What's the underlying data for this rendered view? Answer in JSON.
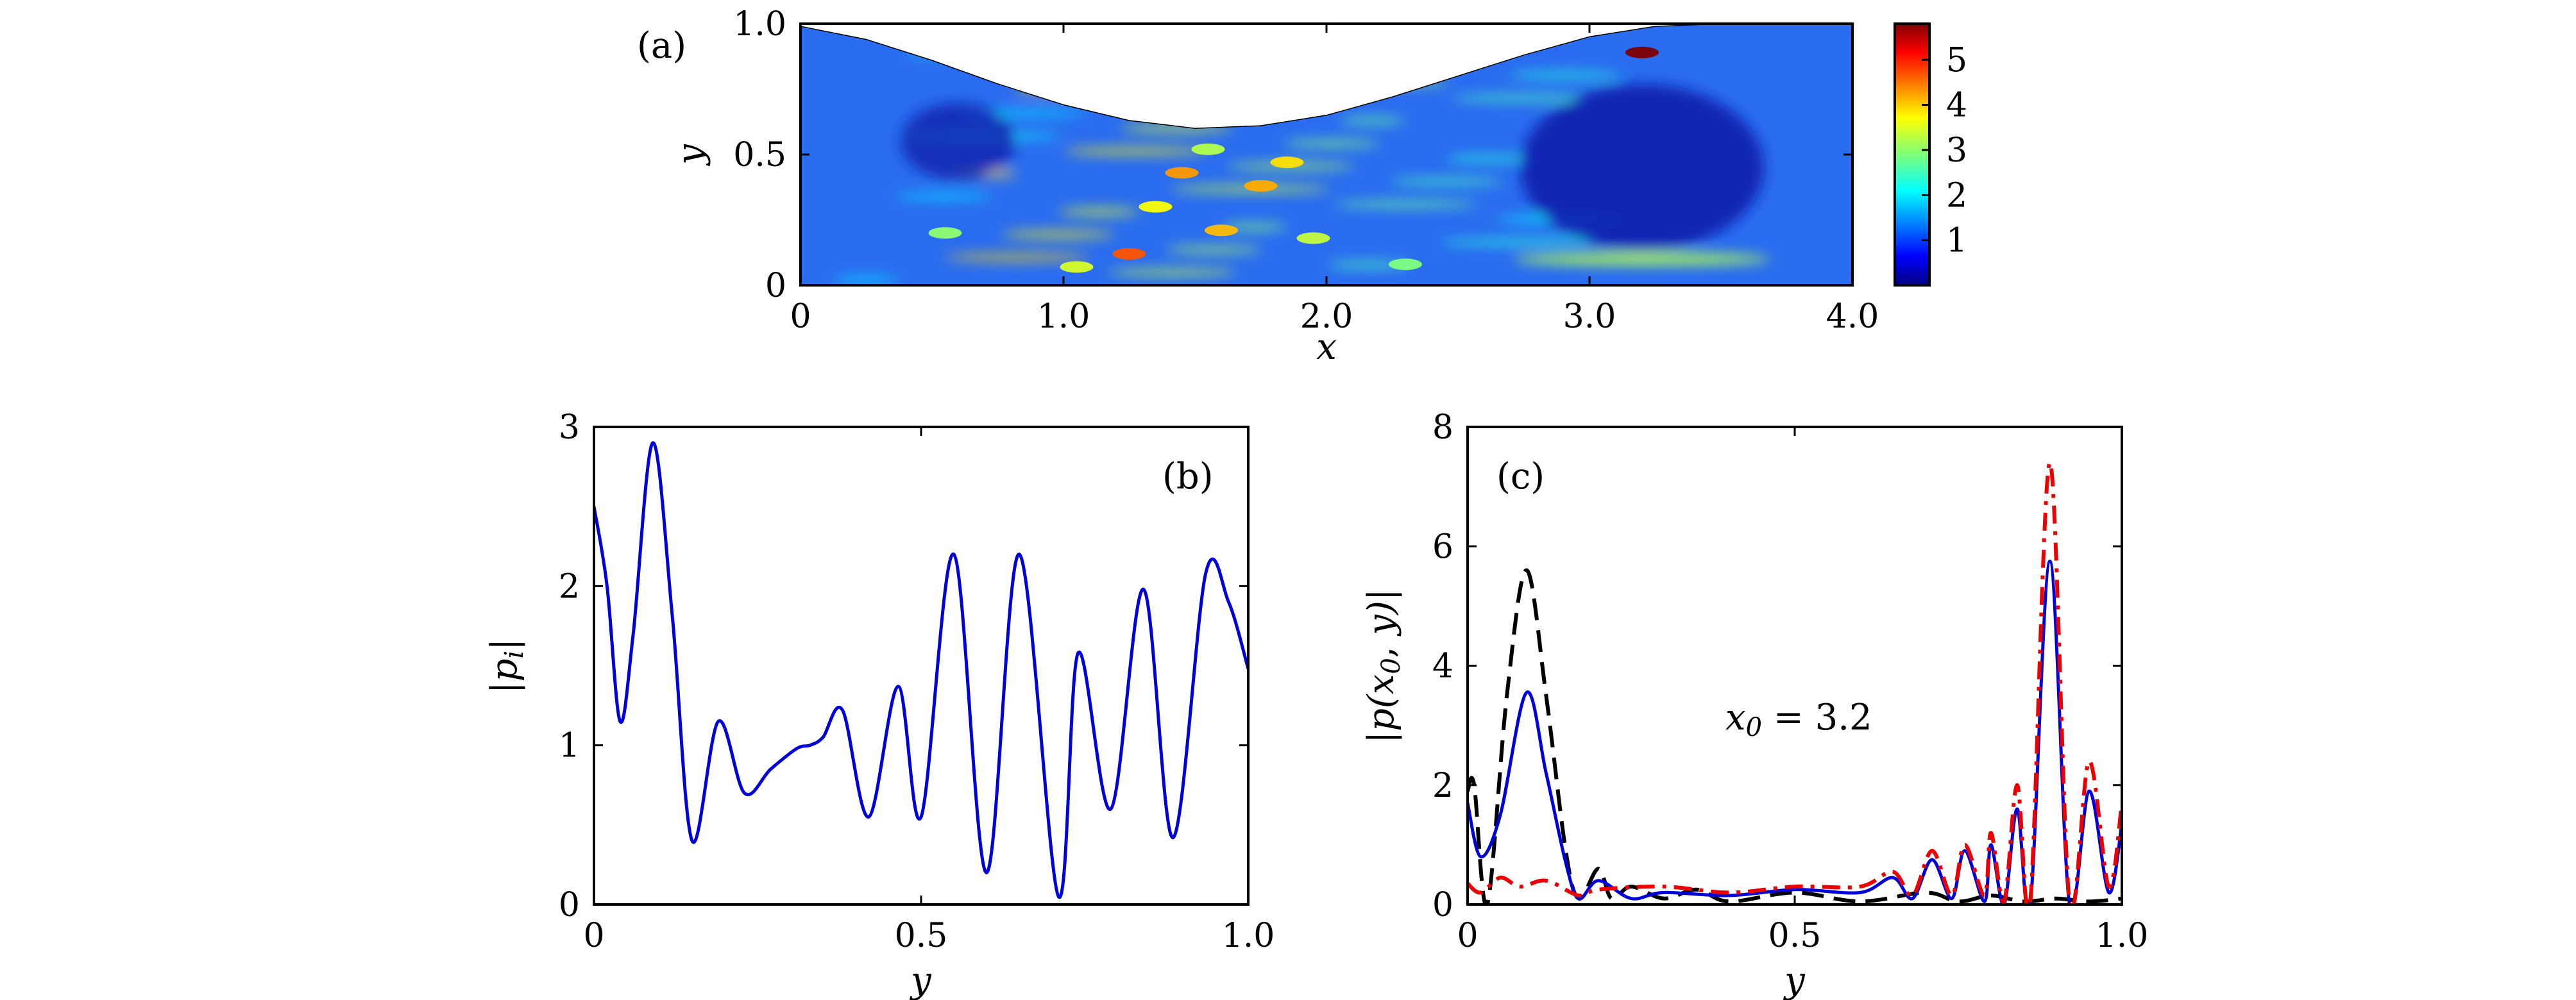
{
  "chart_data": [
    {
      "panel": "(a)",
      "type": "heatmap",
      "xlabel": "x",
      "ylabel": "y",
      "xlim": [
        0,
        4.0
      ],
      "ylim": [
        0,
        1.0
      ],
      "xtick_labels": [
        "0",
        "1.0",
        "2.0",
        "3.0",
        "4.0"
      ],
      "ytick_labels": [
        "0",
        "0.5",
        "1.0"
      ],
      "colorbar": {
        "range": [
          0,
          5.8
        ],
        "tick_labels": [
          "1",
          "2",
          "3",
          "4",
          "5"
        ],
        "colormap": "jet"
      },
      "upper_boundary": {
        "x": [
          0,
          0.25,
          0.5,
          0.75,
          1.0,
          1.25,
          1.5,
          1.75,
          2.0,
          2.25,
          2.5,
          2.75,
          3.0,
          3.25,
          3.5,
          3.75,
          4.0
        ],
        "y": [
          0.99,
          0.94,
          0.86,
          0.77,
          0.69,
          0.63,
          0.6,
          0.61,
          0.65,
          0.72,
          0.8,
          0.88,
          0.95,
          0.99,
          1.0,
          1.0,
          1.0
        ]
      },
      "hotspots": [
        {
          "x": 3.2,
          "y": 0.89,
          "value": 5.8
        },
        {
          "x": 1.25,
          "y": 0.12,
          "value": 4.6
        },
        {
          "x": 1.45,
          "y": 0.43,
          "value": 4.2
        },
        {
          "x": 1.6,
          "y": 0.21,
          "value": 4.0
        },
        {
          "x": 1.75,
          "y": 0.38,
          "value": 4.1
        },
        {
          "x": 1.85,
          "y": 0.47,
          "value": 3.8
        },
        {
          "x": 1.35,
          "y": 0.3,
          "value": 3.6
        },
        {
          "x": 1.05,
          "y": 0.07,
          "value": 3.4
        },
        {
          "x": 1.95,
          "y": 0.18,
          "value": 3.3
        },
        {
          "x": 1.55,
          "y": 0.52,
          "value": 3.2
        },
        {
          "x": 0.55,
          "y": 0.2,
          "value": 3.0
        },
        {
          "x": 2.3,
          "y": 0.08,
          "value": 2.9
        }
      ]
    },
    {
      "panel": "(b)",
      "type": "line",
      "xlabel": "y",
      "ylabel": "|p_i|",
      "xlim": [
        0,
        1.0
      ],
      "ylim": [
        0,
        3
      ],
      "xtick_labels": [
        "0",
        "0.5",
        "1.0"
      ],
      "ytick_labels": [
        "0",
        "1",
        "2",
        "3"
      ],
      "series": [
        {
          "color": "#0000dd",
          "style": "solid",
          "x": [
            0,
            0.02,
            0.04,
            0.06,
            0.09,
            0.12,
            0.15,
            0.19,
            0.23,
            0.27,
            0.31,
            0.33,
            0.35,
            0.38,
            0.42,
            0.465,
            0.5,
            0.55,
            0.6,
            0.65,
            0.71,
            0.74,
            0.79,
            0.84,
            0.885,
            0.935,
            0.97,
            1.0
          ],
          "y": [
            2.5,
            2.0,
            1.15,
            1.7,
            2.9,
            1.8,
            0.4,
            1.15,
            0.7,
            0.85,
            0.98,
            1.0,
            1.05,
            1.22,
            0.55,
            1.37,
            0.55,
            2.2,
            0.2,
            2.2,
            0.05,
            1.58,
            0.6,
            1.98,
            0.42,
            2.08,
            1.9,
            1.48
          ]
        }
      ]
    },
    {
      "panel": "(c)",
      "type": "line",
      "xlabel": "y",
      "ylabel": "|p(x_0, y)|",
      "xlim": [
        0,
        1.0
      ],
      "ylim": [
        0,
        8
      ],
      "xtick_labels": [
        "0",
        "0.5",
        "1.0"
      ],
      "ytick_labels": [
        "0",
        "2",
        "4",
        "6",
        "8"
      ],
      "annotation": "x_0 = 3.2",
      "series": [
        {
          "color": "#000000",
          "style": "dashed",
          "x": [
            0,
            0.01,
            0.03,
            0.06,
            0.09,
            0.12,
            0.15,
            0.17,
            0.2,
            0.22,
            0.25,
            0.3,
            0.35,
            0.4,
            0.5,
            0.6,
            0.7,
            0.75,
            0.8,
            0.85,
            0.9,
            0.95,
            1.0
          ],
          "y": [
            1.9,
            2.0,
            0.0,
            3.5,
            5.6,
            3.5,
            0.9,
            0.1,
            0.6,
            0.1,
            0.3,
            0.1,
            0.25,
            0.05,
            0.2,
            0.05,
            0.2,
            0.05,
            0.15,
            0.05,
            0.1,
            0.05,
            0.1
          ]
        },
        {
          "color": "#0000dd",
          "style": "solid",
          "x": [
            0,
            0.02,
            0.05,
            0.09,
            0.12,
            0.15,
            0.17,
            0.2,
            0.25,
            0.3,
            0.4,
            0.5,
            0.6,
            0.65,
            0.68,
            0.71,
            0.74,
            0.76,
            0.79,
            0.8,
            0.82,
            0.84,
            0.86,
            0.89,
            0.92,
            0.95,
            0.98,
            1.0
          ],
          "y": [
            1.7,
            0.8,
            1.5,
            3.55,
            2.2,
            0.7,
            0.1,
            0.4,
            0.1,
            0.2,
            0.15,
            0.25,
            0.2,
            0.45,
            0.1,
            0.75,
            0.1,
            0.9,
            0.05,
            1.0,
            0.0,
            1.6,
            0.0,
            5.75,
            0.0,
            1.9,
            0.2,
            1.35
          ]
        },
        {
          "color": "#ee0000",
          "style": "dashdot",
          "x": [
            0,
            0.02,
            0.05,
            0.08,
            0.12,
            0.17,
            0.2,
            0.3,
            0.4,
            0.5,
            0.6,
            0.65,
            0.68,
            0.71,
            0.74,
            0.76,
            0.79,
            0.8,
            0.82,
            0.84,
            0.86,
            0.89,
            0.92,
            0.95,
            0.98,
            1.0
          ],
          "y": [
            0.35,
            0.2,
            0.45,
            0.3,
            0.4,
            0.15,
            0.25,
            0.3,
            0.2,
            0.3,
            0.3,
            0.55,
            0.15,
            0.9,
            0.15,
            1.0,
            0.15,
            1.2,
            0.05,
            2.0,
            0.05,
            7.4,
            0.05,
            2.4,
            0.3,
            1.7
          ]
        }
      ]
    }
  ]
}
